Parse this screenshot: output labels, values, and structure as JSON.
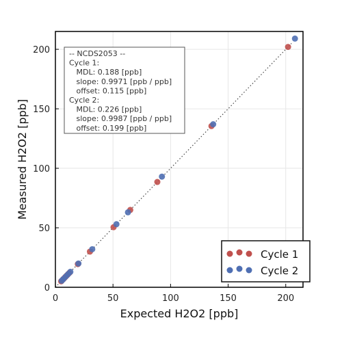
{
  "chart_data": {
    "type": "scatter",
    "title": "",
    "xlabel": "Expected H2O2 [ppb]",
    "ylabel": "Measured H2O2 [ppb]",
    "xlim": [
      0,
      215
    ],
    "ylim": [
      0,
      215
    ],
    "xticks": [
      0,
      50,
      100,
      150,
      200
    ],
    "yticks": [
      0,
      50,
      100,
      150,
      200
    ],
    "grid": true,
    "reference_line": {
      "style": "dotted",
      "color": "#444444",
      "from": [
        0,
        0
      ],
      "to": [
        205,
        205
      ]
    },
    "legend": {
      "placement": "bottom-right"
    },
    "series": [
      {
        "name": "Cycle 1",
        "color": "#c0504d",
        "points": [
          [
            5,
            5
          ],
          [
            6.5,
            6.5
          ],
          [
            8,
            8
          ],
          [
            10,
            10
          ],
          [
            12,
            12
          ],
          [
            19.5,
            19.5
          ],
          [
            30,
            30
          ],
          [
            50.5,
            50.5
          ],
          [
            65,
            65
          ],
          [
            88.5,
            88.5
          ],
          [
            135.5,
            135.5
          ],
          [
            202,
            202
          ]
        ]
      },
      {
        "name": "Cycle 2",
        "color": "#4f6fb3",
        "points": [
          [
            5.5,
            5.5
          ],
          [
            7,
            7
          ],
          [
            9,
            9
          ],
          [
            11,
            11
          ],
          [
            13,
            13
          ],
          [
            20,
            20
          ],
          [
            32,
            32
          ],
          [
            53,
            53
          ],
          [
            63,
            63
          ],
          [
            92.5,
            93
          ],
          [
            137,
            137
          ],
          [
            208,
            209
          ]
        ]
      }
    ],
    "annotation_lines": [
      "-- NCDS2053 --",
      "Cycle 1:",
      "   MDL: 0.188 [ppb]",
      "   slope: 0.9971 [ppb / ppb]",
      "   offset: 0.115 [ppb]",
      "Cycle 2:",
      "   MDL: 0.226 [ppb]",
      "   slope: 0.9987 [ppb / ppb]",
      "   offset: 0.199 [ppb]"
    ]
  }
}
